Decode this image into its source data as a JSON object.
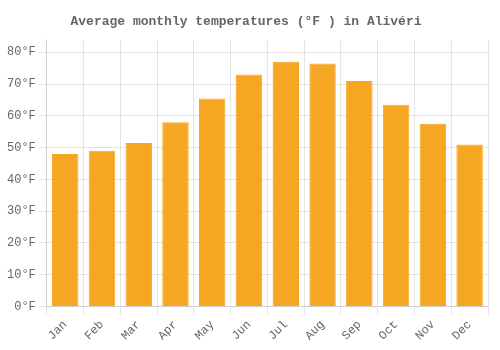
{
  "chart_data": {
    "type": "bar",
    "title": "Average monthly temperatures (°F ) in Alivéri",
    "categories": [
      "Jan",
      "Feb",
      "Mar",
      "Apr",
      "May",
      "Jun",
      "Jul",
      "Aug",
      "Sep",
      "Oct",
      "Nov",
      "Dec"
    ],
    "values": [
      48,
      49,
      51.5,
      58,
      65.5,
      73,
      77,
      76.5,
      71,
      63.5,
      57.5,
      51
    ],
    "color": "#F5A623",
    "ylim": [
      0,
      84
    ],
    "yticks": [
      {
        "value": 0,
        "label": "0°F"
      },
      {
        "value": 10,
        "label": "10°F"
      },
      {
        "value": 20,
        "label": "20°F"
      },
      {
        "value": 30,
        "label": "30°F"
      },
      {
        "value": 40,
        "label": "40°F"
      },
      {
        "value": 50,
        "label": "50°F"
      },
      {
        "value": 60,
        "label": "60°F"
      },
      {
        "value": 70,
        "label": "70°F"
      },
      {
        "value": 80,
        "label": "80°F"
      }
    ],
    "grid": true
  }
}
